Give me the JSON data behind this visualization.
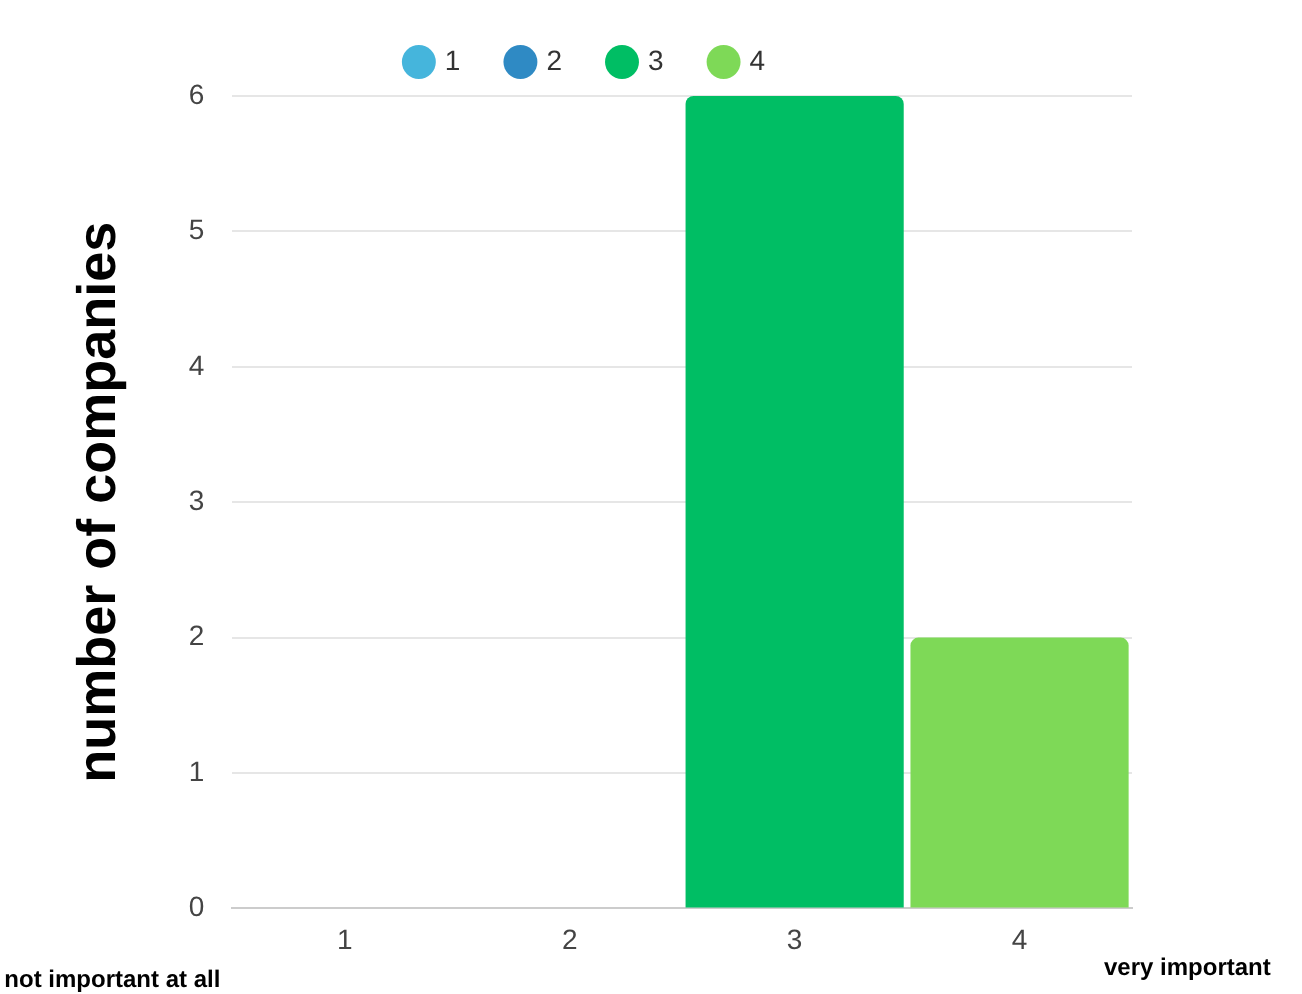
{
  "chart_data": {
    "type": "bar",
    "ylabel": "number of companies",
    "categories": [
      "1",
      "2",
      "3",
      "4"
    ],
    "series": [
      {
        "name": "1",
        "color": "#45b5dc",
        "values": [
          0,
          null,
          null,
          null
        ]
      },
      {
        "name": "2",
        "color": "#2f8ac4",
        "values": [
          null,
          0,
          null,
          null
        ]
      },
      {
        "name": "3",
        "color": "#00be64",
        "values": [
          null,
          null,
          6,
          null
        ]
      },
      {
        "name": "4",
        "color": "#7ed957",
        "values": [
          null,
          null,
          null,
          2
        ]
      }
    ],
    "ylim": [
      0,
      6
    ],
    "yticks": [
      0,
      1,
      2,
      3,
      4,
      5,
      6
    ],
    "grid": "y",
    "legend": "top",
    "annotations": [
      "not important at all",
      "very important"
    ]
  }
}
